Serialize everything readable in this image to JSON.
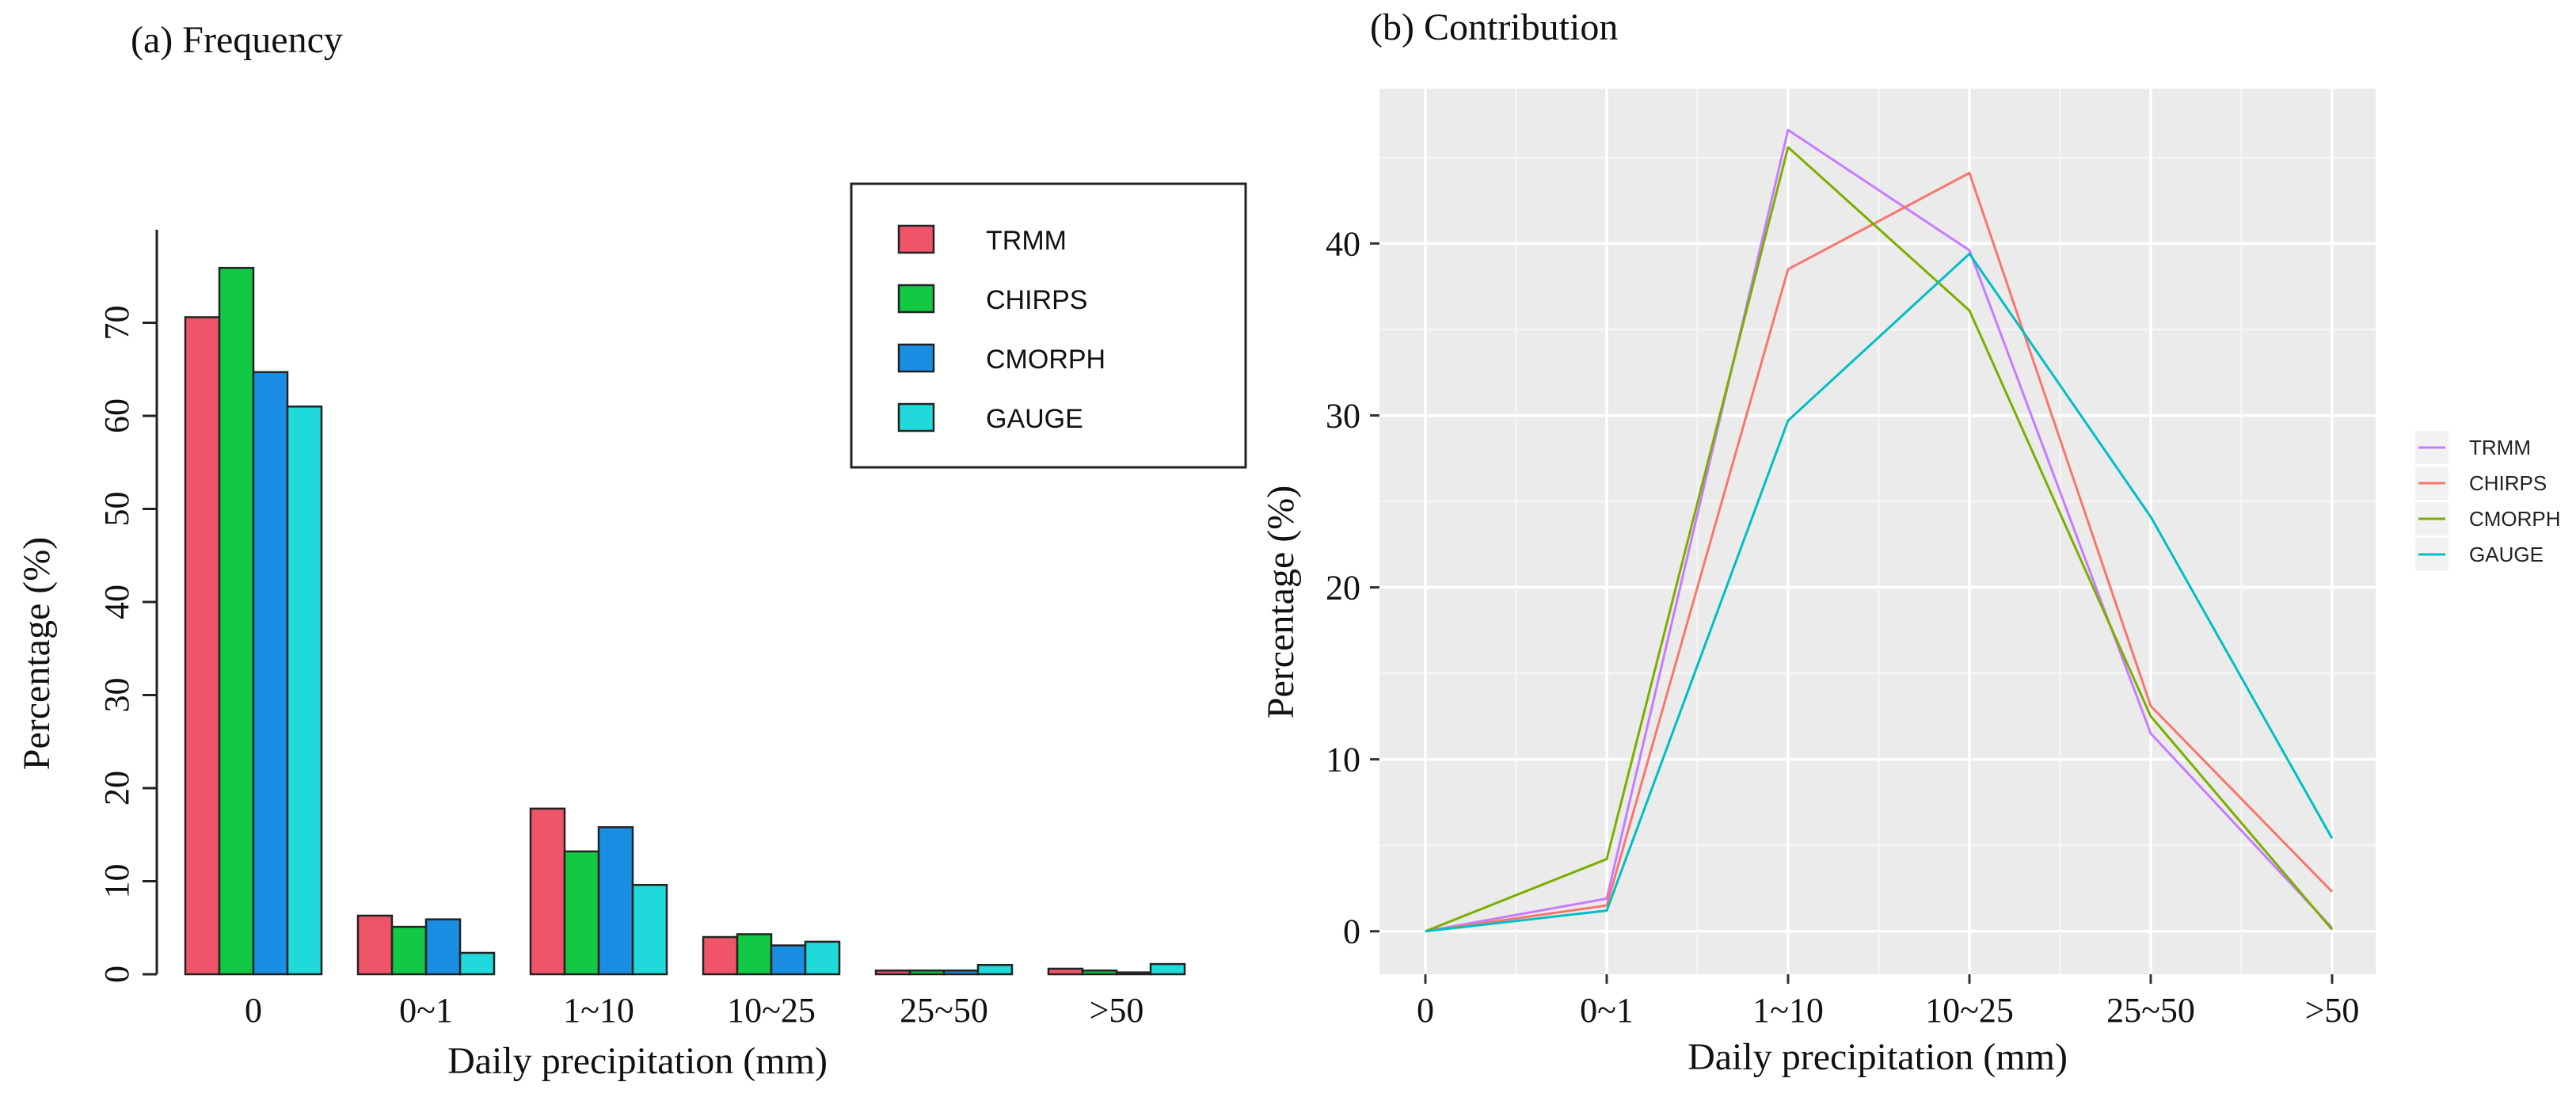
{
  "chart_data": [
    {
      "type": "bar",
      "title": "(a) Frequency",
      "xlabel": "Daily precipitation (mm)",
      "ylabel": "Percentage (%)",
      "ylim": [
        0,
        80
      ],
      "yticks": [
        "0",
        "10",
        "20",
        "30",
        "40",
        "50",
        "60",
        "70"
      ],
      "categories": [
        "0",
        "0~1",
        "1~10",
        "10~25",
        "25~50",
        ">50"
      ],
      "legend_position": "top-right",
      "series": [
        {
          "name": "TRMM",
          "color": "#f05468",
          "values": [
            70.6,
            6.3,
            17.8,
            4.0,
            0.4,
            0.6
          ]
        },
        {
          "name": "CHIRPS",
          "color": "#12c944",
          "values": [
            75.9,
            5.1,
            13.2,
            4.3,
            0.4,
            0.4
          ]
        },
        {
          "name": "CMORPH",
          "color": "#1a8ee3",
          "values": [
            64.7,
            5.9,
            15.8,
            3.1,
            0.4,
            0.2
          ]
        },
        {
          "name": "GAUGE",
          "color": "#1fd9db",
          "values": [
            61.0,
            2.3,
            9.6,
            3.5,
            1.0,
            1.1
          ]
        }
      ]
    },
    {
      "type": "line",
      "title": "(b) Contribution",
      "xlabel": "Daily precipitation (mm)",
      "ylabel": "Percentage (%)",
      "ylim": [
        -2.5,
        49
      ],
      "yticks": [
        "0",
        "10",
        "20",
        "30",
        "40"
      ],
      "categories": [
        "0",
        "0~1",
        "1~10",
        "10~25",
        "25~50",
        ">50"
      ],
      "grid": true,
      "legend_position": "right",
      "series": [
        {
          "name": "TRMM",
          "color": "#c77cff",
          "values": [
            0,
            1.9,
            46.6,
            39.6,
            11.5,
            0.2
          ]
        },
        {
          "name": "CHIRPS",
          "color": "#f8766d",
          "values": [
            0,
            1.5,
            38.5,
            44.1,
            13.1,
            2.3
          ]
        },
        {
          "name": "CMORPH",
          "color": "#7cae00",
          "values": [
            0,
            4.2,
            45.6,
            36.1,
            12.5,
            0.1
          ]
        },
        {
          "name": "GAUGE",
          "color": "#00bfc4",
          "values": [
            0,
            1.2,
            29.7,
            39.4,
            24.1,
            5.4
          ]
        }
      ]
    }
  ]
}
